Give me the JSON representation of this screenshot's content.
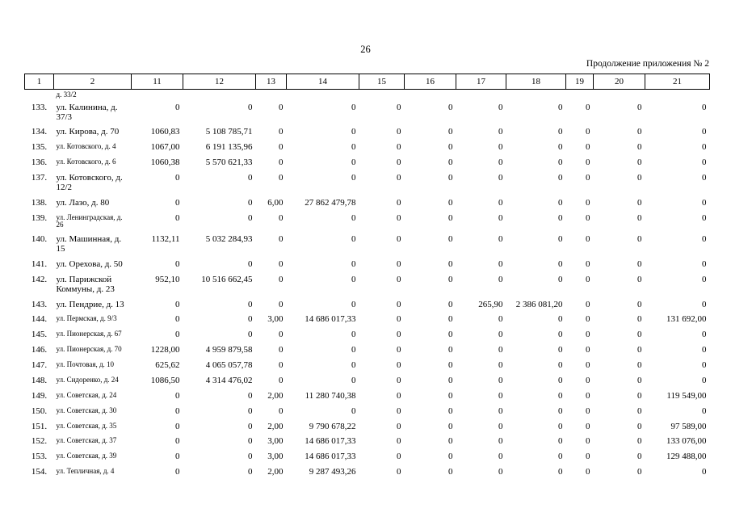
{
  "page": {
    "number": "26",
    "continuation_note": "Продолжение приложения № 2"
  },
  "table": {
    "columns": [
      "1",
      "2",
      "11",
      "12",
      "13",
      "14",
      "15",
      "16",
      "17",
      "18",
      "19",
      "20",
      "21"
    ],
    "rows": [
      {
        "num": "",
        "address": "д. 33/2",
        "carry": true,
        "values": [
          "",
          "",
          "",
          "",
          "",
          "",
          "",
          "",
          "",
          "",
          ""
        ]
      },
      {
        "num": "133.",
        "address": "ул. Калинина, д. 37/3",
        "values": [
          "0",
          "0",
          "0",
          "0",
          "0",
          "0",
          "0",
          "0",
          "0",
          "0",
          "0"
        ]
      },
      {
        "num": "134.",
        "address": "ул. Кирова, д. 70",
        "nowrap": true,
        "values": [
          "1060,83",
          "5 108 785,71",
          "0",
          "0",
          "0",
          "0",
          "0",
          "0",
          "0",
          "0",
          "0"
        ]
      },
      {
        "num": "135.",
        "address": "ул. Котовского, д. 4",
        "compact": true,
        "nowrap": true,
        "values": [
          "1067,00",
          "6 191 135,96",
          "0",
          "0",
          "0",
          "0",
          "0",
          "0",
          "0",
          "0",
          "0"
        ]
      },
      {
        "num": "136.",
        "address": "ул. Котовского, д. 6",
        "compact": true,
        "nowrap": true,
        "values": [
          "1060,38",
          "5 570 621,33",
          "0",
          "0",
          "0",
          "0",
          "0",
          "0",
          "0",
          "0",
          "0"
        ]
      },
      {
        "num": "137.",
        "address": "ул. Котовского, д. 12/2",
        "values": [
          "0",
          "0",
          "0",
          "0",
          "0",
          "0",
          "0",
          "0",
          "0",
          "0",
          "0"
        ]
      },
      {
        "num": "138.",
        "address": "ул. Лазо, д. 80",
        "nowrap": true,
        "values": [
          "0",
          "0",
          "6,00",
          "27 862 479,78",
          "0",
          "0",
          "0",
          "0",
          "0",
          "0",
          "0"
        ]
      },
      {
        "num": "139.",
        "address": "ул. Ленинградская, д. 26",
        "compact": true,
        "values": [
          "0",
          "0",
          "0",
          "0",
          "0",
          "0",
          "0",
          "0",
          "0",
          "0",
          "0"
        ]
      },
      {
        "num": "140.",
        "address": "ул. Машинная, д. 15",
        "values": [
          "1132,11",
          "5 032 284,93",
          "0",
          "0",
          "0",
          "0",
          "0",
          "0",
          "0",
          "0",
          "0"
        ]
      },
      {
        "num": "141.",
        "address": "ул. Орехова, д. 50",
        "nowrap": true,
        "values": [
          "0",
          "0",
          "0",
          "0",
          "0",
          "0",
          "0",
          "0",
          "0",
          "0",
          "0"
        ]
      },
      {
        "num": "142.",
        "address": "ул. Парижской Коммуны, д. 23",
        "values": [
          "952,10",
          "10 516 662,45",
          "0",
          "0",
          "0",
          "0",
          "0",
          "0",
          "0",
          "0",
          "0"
        ]
      },
      {
        "num": "143.",
        "address": "ул. Пендрие, д. 13",
        "values": [
          "0",
          "0",
          "0",
          "0",
          "0",
          "0",
          "265,90",
          "2 386 081,20",
          "0",
          "0",
          "0"
        ]
      },
      {
        "num": "144.",
        "address": "ул. Пермская, д. 9/3",
        "compact": true,
        "nowrap": true,
        "values": [
          "0",
          "0",
          "3,00",
          "14 686 017,33",
          "0",
          "0",
          "0",
          "0",
          "0",
          "0",
          "131 692,00"
        ]
      },
      {
        "num": "145.",
        "address": "ул. Пионерская, д. 67",
        "compact": true,
        "nowrap": true,
        "values": [
          "0",
          "0",
          "0",
          "0",
          "0",
          "0",
          "0",
          "0",
          "0",
          "0",
          "0"
        ]
      },
      {
        "num": "146.",
        "address": "ул. Пионерская, д. 70",
        "compact": true,
        "nowrap": true,
        "values": [
          "1228,00",
          "4 959 879,58",
          "0",
          "0",
          "0",
          "0",
          "0",
          "0",
          "0",
          "0",
          "0"
        ]
      },
      {
        "num": "147.",
        "address": "ул. Почтовая, д. 10",
        "compact": true,
        "nowrap": true,
        "values": [
          "625,62",
          "4 065 057,78",
          "0",
          "0",
          "0",
          "0",
          "0",
          "0",
          "0",
          "0",
          "0"
        ]
      },
      {
        "num": "148.",
        "address": "ул. Сидоренко, д. 24",
        "compact": true,
        "nowrap": true,
        "values": [
          "1086,50",
          "4 314 476,02",
          "0",
          "0",
          "0",
          "0",
          "0",
          "0",
          "0",
          "0",
          "0"
        ]
      },
      {
        "num": "149.",
        "address": "ул. Советская, д. 24",
        "compact": true,
        "nowrap": true,
        "values": [
          "0",
          "0",
          "2,00",
          "11 280 740,38",
          "0",
          "0",
          "0",
          "0",
          "0",
          "0",
          "119 549,00"
        ]
      },
      {
        "num": "150.",
        "address": "ул. Советская, д. 30",
        "compact": true,
        "nowrap": true,
        "values": [
          "0",
          "0",
          "0",
          "0",
          "0",
          "0",
          "0",
          "0",
          "0",
          "0",
          "0"
        ]
      },
      {
        "num": "151.",
        "address": "ул. Советская, д. 35",
        "compact": true,
        "nowrap": true,
        "values": [
          "0",
          "0",
          "2,00",
          "9 790 678,22",
          "0",
          "0",
          "0",
          "0",
          "0",
          "0",
          "97 589,00"
        ]
      },
      {
        "num": "152.",
        "address": "ул. Советская, д. 37",
        "compact": true,
        "nowrap": true,
        "values": [
          "0",
          "0",
          "3,00",
          "14 686 017,33",
          "0",
          "0",
          "0",
          "0",
          "0",
          "0",
          "133 076,00"
        ]
      },
      {
        "num": "153.",
        "address": "ул. Советская, д. 39",
        "compact": true,
        "nowrap": true,
        "values": [
          "0",
          "0",
          "3,00",
          "14 686 017,33",
          "0",
          "0",
          "0",
          "0",
          "0",
          "0",
          "129 488,00"
        ]
      },
      {
        "num": "154.",
        "address": "ул. Тепличная, д. 4",
        "compact": true,
        "nowrap": true,
        "values": [
          "0",
          "0",
          "2,00",
          "9 287 493,26",
          "0",
          "0",
          "0",
          "0",
          "0",
          "0",
          "0"
        ]
      }
    ]
  }
}
